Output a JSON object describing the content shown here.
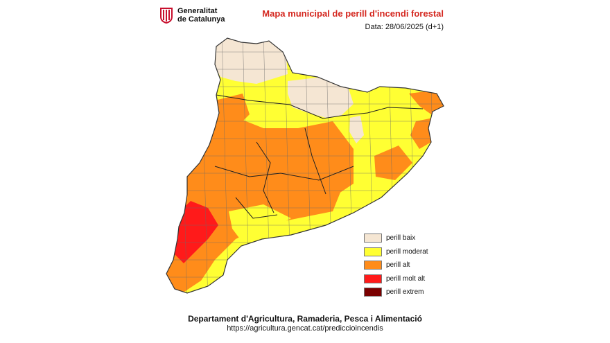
{
  "header": {
    "logo_line1": "Generalitat",
    "logo_line2": "de Catalunya",
    "title": "Mapa municipal de perill d'incendi forestal",
    "date": "Data: 28/06/2025 (d+1)"
  },
  "colors": {
    "baix": "#f5e6d3",
    "moderat": "#ffff33",
    "alt": "#ff8c1a",
    "molt_alt": "#ff1a1a",
    "extrem": "#7a0000",
    "title": "#d4261e"
  },
  "legend": [
    {
      "label": "perill baix",
      "color": "#f5e6d3"
    },
    {
      "label": "perill moderat",
      "color": "#ffff33"
    },
    {
      "label": "perill alt",
      "color": "#ff8c1a"
    },
    {
      "label": "perill molt alt",
      "color": "#ff1a1a"
    },
    {
      "label": "perill extrem",
      "color": "#7a0000"
    }
  ],
  "footer": {
    "department": "Departament d'Agricultura, Ramaderia, Pesca i Alimentació",
    "url": "https://agricultura.gencat.cat/prediccioincendis"
  }
}
